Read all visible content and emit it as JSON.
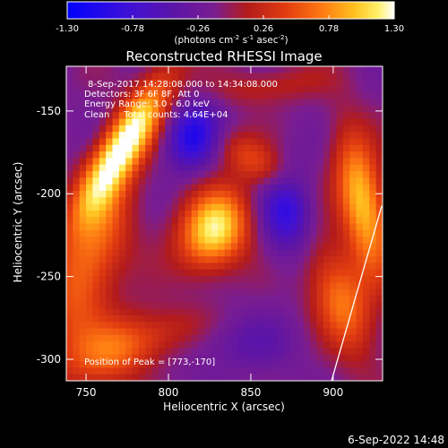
{
  "chart_data": {
    "type": "heatmap",
    "title": "Reconstructed RHESSI Image",
    "xlabel": "Heliocentric X (arcsec)",
    "ylabel": "Heliocentric Y (arcsec)",
    "xlim": [
      738,
      930
    ],
    "ylim": [
      -313,
      -123
    ],
    "x_ticks": [
      750,
      800,
      850,
      900
    ],
    "y_ticks": [
      -150,
      -200,
      -250,
      -300
    ],
    "colorbar": {
      "range": [
        -1.3,
        1.3
      ],
      "ticks": [
        "-1.30",
        "-0.78",
        "-0.26",
        "0.26",
        "0.78",
        "1.30"
      ],
      "unit_html": "(photons cm<tspan dy='-4' font-size='7'>-2</tspan><tspan dy='4'> s</tspan><tspan dy='-4' font-size='7'>-1</tspan><tspan dy='4'> asec</tspan><tspan dy='-4' font-size='7'>-2</tspan><tspan dy='4'>)</tspan>",
      "colormap": "RHESSI blue-purple-red-yellow-white"
    },
    "annotations": {
      "line1": "8-Sep-2017 14:28:08.000 to 14:34:08.000",
      "line2": "Detectors: 3F 6F 8F, Att 0",
      "line3": "Energy Range: 3.0 - 6.0 keV",
      "line4": "Clean     Total counts: 4.64E+04",
      "peak": "Position of Peak = [773,-170]"
    },
    "sources": [
      {
        "x": 773,
        "y": -170,
        "peak": 1.3
      },
      {
        "x": 828,
        "y": -222,
        "peak": 1.25
      },
      {
        "x": 918,
        "y": -200,
        "peak": 1.1
      }
    ],
    "limb_line": "white solar limb line, lower right"
  },
  "footer": {
    "timestamp": "6-Sep-2022 14:48"
  }
}
